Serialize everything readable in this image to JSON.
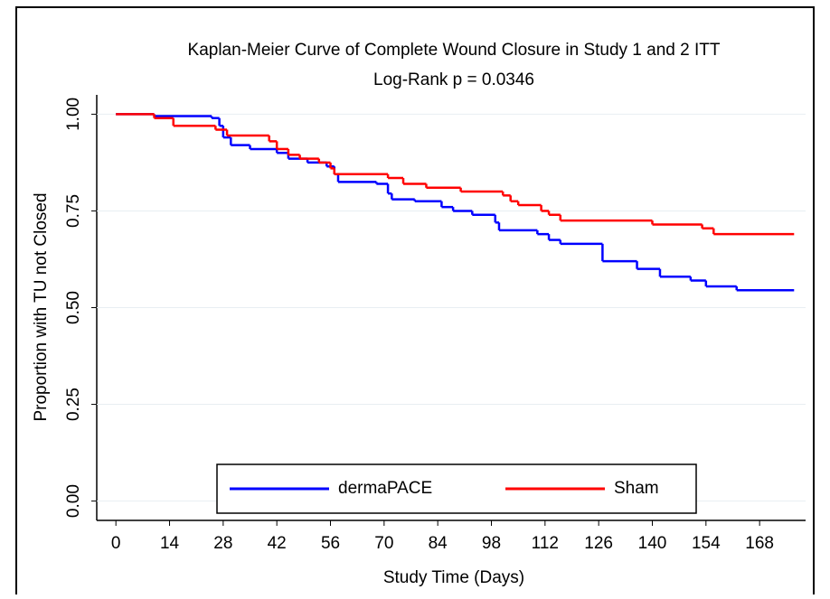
{
  "chart_data": {
    "type": "step",
    "title": "Kaplan-Meier Curve of Complete Wound Closure in Study 1 and 2 ITT",
    "subtitle": "Log-Rank p = 0.0346",
    "x_label": "Study Time (Days)",
    "y_label": "Proportion with TU not Closed",
    "xlim": [
      -5,
      180
    ],
    "ylim": [
      -0.05,
      1.05
    ],
    "xticks": [
      0,
      14,
      28,
      42,
      56,
      70,
      84,
      98,
      112,
      126,
      140,
      154,
      168
    ],
    "yticks": [
      {
        "value": 0,
        "label": "0.00"
      },
      {
        "value": 0.25,
        "label": "0.25"
      },
      {
        "value": 0.5,
        "label": "0.50"
      },
      {
        "value": 0.75,
        "label": "0.75"
      },
      {
        "value": 1,
        "label": "1.00"
      }
    ],
    "grid": true,
    "legend": "bottom",
    "series": [
      {
        "name": "dermaPACE",
        "color": "#0000ff",
        "x": [
          0,
          10,
          25,
          27,
          28,
          30,
          35,
          42,
          45,
          50,
          55,
          57,
          58,
          68,
          71,
          72,
          78,
          85,
          88,
          93,
          99,
          100,
          110,
          113,
          116,
          127,
          136,
          142,
          150,
          154,
          162,
          177
        ],
        "values": [
          1.0,
          0.995,
          0.99,
          0.97,
          0.94,
          0.92,
          0.91,
          0.9,
          0.885,
          0.875,
          0.865,
          0.845,
          0.825,
          0.82,
          0.795,
          0.78,
          0.775,
          0.76,
          0.75,
          0.74,
          0.72,
          0.7,
          0.69,
          0.675,
          0.665,
          0.62,
          0.6,
          0.58,
          0.57,
          0.555,
          0.545,
          0.545
        ]
      },
      {
        "name": "Sham",
        "color": "#ff0000",
        "x": [
          0,
          10,
          15,
          26,
          29,
          40,
          42,
          45,
          48,
          53,
          56,
          57,
          71,
          75,
          81,
          90,
          101,
          103,
          105,
          111,
          113,
          116,
          140,
          153,
          156,
          177
        ],
        "values": [
          1.0,
          0.99,
          0.97,
          0.96,
          0.945,
          0.93,
          0.91,
          0.895,
          0.885,
          0.875,
          0.86,
          0.845,
          0.835,
          0.82,
          0.81,
          0.8,
          0.79,
          0.775,
          0.765,
          0.75,
          0.74,
          0.725,
          0.715,
          0.705,
          0.69,
          0.69
        ]
      }
    ]
  }
}
